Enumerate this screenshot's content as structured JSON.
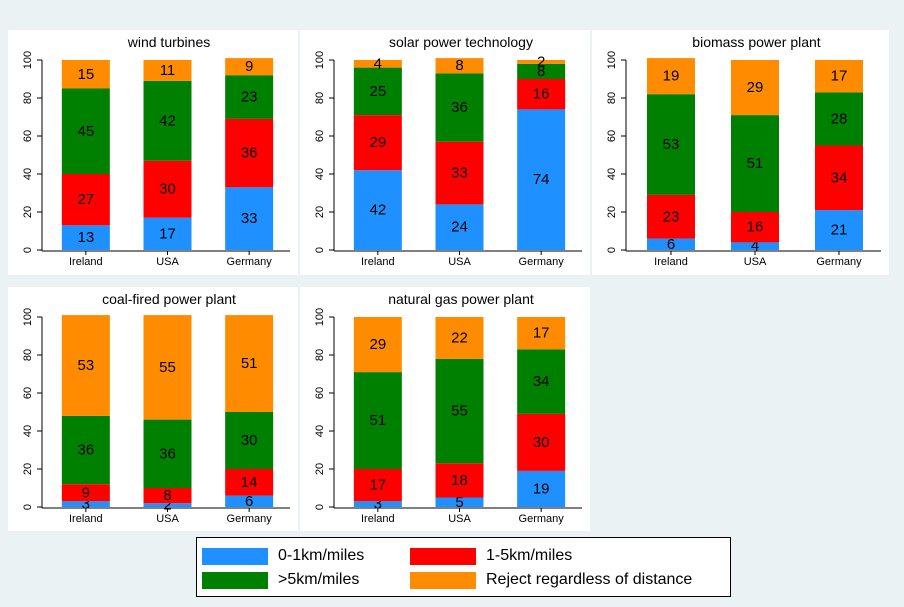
{
  "colors": {
    "near": "#1e90ff",
    "mid": "#ff0000",
    "far": "#008000",
    "reject": "#ff8c00",
    "panel_bg": "#ffffff",
    "page_bg": "#eaf2f3"
  },
  "legend": {
    "items": [
      {
        "key": "near",
        "label": "0-1km/miles"
      },
      {
        "key": "mid",
        "label": "1-5km/miles"
      },
      {
        "key": "far",
        "label": ">5km/miles"
      },
      {
        "key": "reject",
        "label": "Reject regardless of distance"
      }
    ]
  },
  "chart_data": [
    {
      "type": "bar",
      "stacked": true,
      "title": "wind turbines",
      "categories": [
        "Ireland",
        "USA",
        "Germany"
      ],
      "ylim": [
        0,
        100
      ],
      "yticks": [
        0,
        20,
        40,
        60,
        80,
        100
      ],
      "series": [
        {
          "name": "0-1km/miles",
          "values": [
            13,
            17,
            33
          ]
        },
        {
          "name": "1-5km/miles",
          "values": [
            27,
            30,
            36
          ]
        },
        {
          "name": ">5km/miles",
          "values": [
            45,
            42,
            23
          ]
        },
        {
          "name": "Reject regardless of distance",
          "values": [
            15,
            11,
            9
          ]
        }
      ]
    },
    {
      "type": "bar",
      "stacked": true,
      "title": "solar power technology",
      "categories": [
        "Ireland",
        "USA",
        "Germany"
      ],
      "ylim": [
        0,
        100
      ],
      "yticks": [
        0,
        20,
        40,
        60,
        80,
        100
      ],
      "series": [
        {
          "name": "0-1km/miles",
          "values": [
            42,
            24,
            74
          ]
        },
        {
          "name": "1-5km/miles",
          "values": [
            29,
            33,
            16
          ]
        },
        {
          "name": ">5km/miles",
          "values": [
            25,
            36,
            8
          ]
        },
        {
          "name": "Reject regardless of distance",
          "values": [
            4,
            8,
            2
          ]
        }
      ]
    },
    {
      "type": "bar",
      "stacked": true,
      "title": "biomass power plant",
      "categories": [
        "Ireland",
        "USA",
        "Germany"
      ],
      "ylim": [
        0,
        100
      ],
      "yticks": [
        0,
        20,
        40,
        60,
        80,
        100
      ],
      "series": [
        {
          "name": "0-1km/miles",
          "values": [
            6,
            4,
            21
          ]
        },
        {
          "name": "1-5km/miles",
          "values": [
            23,
            16,
            34
          ]
        },
        {
          "name": ">5km/miles",
          "values": [
            53,
            51,
            28
          ]
        },
        {
          "name": "Reject regardless of distance",
          "values": [
            19,
            29,
            17
          ]
        }
      ]
    },
    {
      "type": "bar",
      "stacked": true,
      "title": "coal-fired power plant",
      "categories": [
        "Ireland",
        "USA",
        "Germany"
      ],
      "ylim": [
        0,
        100
      ],
      "yticks": [
        0,
        20,
        40,
        60,
        80,
        100
      ],
      "series": [
        {
          "name": "0-1km/miles",
          "values": [
            3,
            2,
            6
          ]
        },
        {
          "name": "1-5km/miles",
          "values": [
            9,
            8,
            14
          ]
        },
        {
          "name": ">5km/miles",
          "values": [
            36,
            36,
            30
          ]
        },
        {
          "name": "Reject regardless of distance",
          "values": [
            53,
            55,
            51
          ]
        }
      ]
    },
    {
      "type": "bar",
      "stacked": true,
      "title": "natural gas power plant",
      "categories": [
        "Ireland",
        "USA",
        "Germany"
      ],
      "ylim": [
        0,
        100
      ],
      "yticks": [
        0,
        20,
        40,
        60,
        80,
        100
      ],
      "series": [
        {
          "name": "0-1km/miles",
          "values": [
            3,
            5,
            19
          ]
        },
        {
          "name": "1-5km/miles",
          "values": [
            17,
            18,
            30
          ]
        },
        {
          "name": ">5km/miles",
          "values": [
            51,
            55,
            34
          ]
        },
        {
          "name": "Reject regardless of distance",
          "values": [
            29,
            22,
            17
          ]
        }
      ]
    }
  ]
}
